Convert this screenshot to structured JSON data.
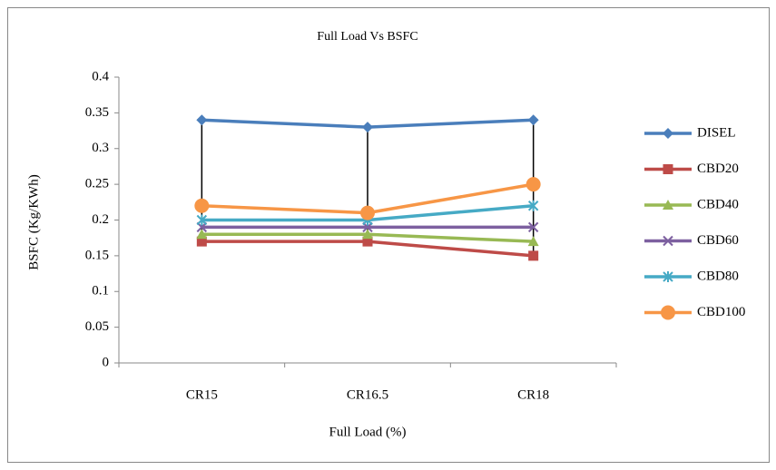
{
  "chart_data": {
    "type": "line",
    "title": "Full Load Vs BSFC",
    "xlabel": "Full Load (%)",
    "ylabel": "BSFC (Kg/KWh)",
    "categories": [
      "CR15",
      "CR16.5",
      "CR18"
    ],
    "series": [
      {
        "name": "DISEL",
        "color": "#4a7ebb",
        "marker": "diamond",
        "values": [
          0.34,
          0.33,
          0.34
        ]
      },
      {
        "name": "CBD20",
        "color": "#be4b48",
        "marker": "square",
        "values": [
          0.17,
          0.17,
          0.15
        ]
      },
      {
        "name": "CBD40",
        "color": "#98b954",
        "marker": "triangle",
        "values": [
          0.18,
          0.18,
          0.17
        ]
      },
      {
        "name": "CBD60",
        "color": "#7d60a0",
        "marker": "x",
        "values": [
          0.19,
          0.19,
          0.19
        ]
      },
      {
        "name": "CBD80",
        "color": "#46aac5",
        "marker": "star",
        "values": [
          0.2,
          0.2,
          0.22
        ]
      },
      {
        "name": "CBD100",
        "color": "#f79646",
        "marker": "circle",
        "values": [
          0.22,
          0.21,
          0.25
        ]
      }
    ],
    "ylim": [
      0,
      0.4
    ],
    "yticks": [
      0,
      0.05,
      0.1,
      0.15,
      0.2,
      0.25,
      0.3,
      0.35,
      0.4
    ],
    "grid": false,
    "high_low_lines": true,
    "legend": "right"
  }
}
